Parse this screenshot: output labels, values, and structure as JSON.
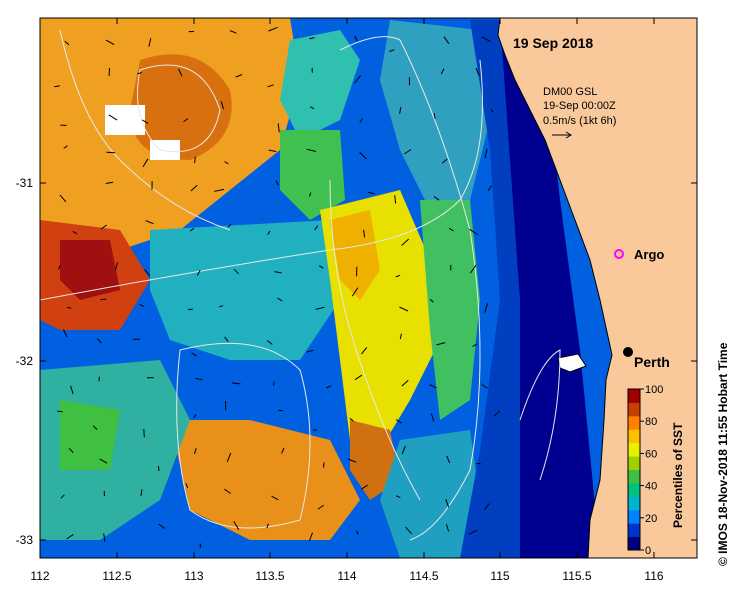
{
  "map": {
    "date_title": "19 Sep 2018",
    "model_label": "DM00 GSL",
    "model_time": "19-Sep 00:00Z",
    "scale_label": "0.5m/s (1kt 6h)",
    "argo_label": "Argo",
    "city_label": "Perth",
    "colors": {
      "land": "#f9c89b",
      "coast_ink": "#000000"
    }
  },
  "axes": {
    "x_ticks": [
      "112",
      "112.5",
      "113",
      "113.5",
      "114",
      "114.5",
      "115",
      "115.5",
      "116"
    ],
    "y_ticks": [
      "-31",
      "-32",
      "-33"
    ]
  },
  "colorbar": {
    "title": "Percentiles of SST",
    "ticks": [
      "100",
      "80",
      "60",
      "40",
      "20",
      "0"
    ],
    "colors": [
      "#000080",
      "#0033cc",
      "#0080ff",
      "#00b4d0",
      "#00c080",
      "#40c040",
      "#9fd000",
      "#e8f000",
      "#ffc000",
      "#ff8000",
      "#c84000",
      "#a00000"
    ]
  },
  "credit": "© IMOS 18-Nov-2018 11:55 Hobart Time"
}
